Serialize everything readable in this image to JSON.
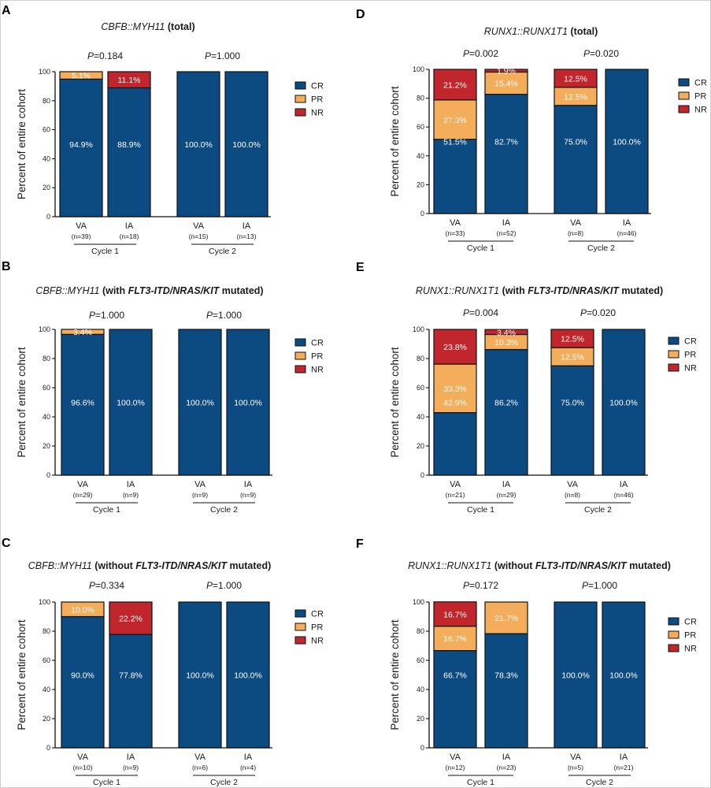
{
  "colors": {
    "CR": "#0c4a82",
    "PR": "#f3ad5b",
    "NR": "#c1262d"
  },
  "chart_data": [
    {
      "type": "bar",
      "stacked": true,
      "panel": "A",
      "title_parts": [
        {
          "text": "CBFB::MYH11",
          "style": "it"
        },
        {
          "text": " (total)",
          "style": "bd"
        }
      ],
      "ylabel": "Percent of entire cohort",
      "ylim": [
        0,
        100
      ],
      "yticks": [
        "0",
        "20",
        "40",
        "60",
        "80",
        "100"
      ],
      "legend": [
        "CR",
        "PR",
        "NR"
      ],
      "groups": [
        {
          "cycle": "Cycle 1",
          "pvalue": "0.184",
          "bars": [
            {
              "arm": "VA",
              "n": "(n=39)",
              "segments": [
                {
                  "type": "CR",
                  "value": 94.9,
                  "label": "94.9%"
                },
                {
                  "type": "PR",
                  "value": 5.1,
                  "label": "5.1%"
                }
              ]
            },
            {
              "arm": "IA",
              "n": "(n=18)",
              "segments": [
                {
                  "type": "CR",
                  "value": 88.9,
                  "label": "88.9%"
                },
                {
                  "type": "NR",
                  "value": 11.1,
                  "label": "11.1%"
                }
              ]
            }
          ]
        },
        {
          "cycle": "Cycle 2",
          "pvalue": "1.000",
          "bars": [
            {
              "arm": "VA",
              "n": "(n=15)",
              "segments": [
                {
                  "type": "CR",
                  "value": 100.0,
                  "label": "100.0%"
                }
              ]
            },
            {
              "arm": "IA",
              "n": "(n=13)",
              "segments": [
                {
                  "type": "CR",
                  "value": 100.0,
                  "label": "100.0%"
                }
              ]
            }
          ]
        }
      ]
    },
    {
      "type": "bar",
      "stacked": true,
      "panel": "B",
      "title_parts": [
        {
          "text": "CBFB::MYH11",
          "style": "it"
        },
        {
          "text": " (with ",
          "style": "bd"
        },
        {
          "text": "FLT3-ITD/NRAS/KIT",
          "style": "bdit"
        },
        {
          "text": " mutated)",
          "style": "bd"
        }
      ],
      "ylabel": "Percent of entire cohort",
      "ylim": [
        0,
        100
      ],
      "yticks": [
        "0",
        "20",
        "40",
        "60",
        "80",
        "100"
      ],
      "legend": [
        "CR",
        "PR",
        "NR"
      ],
      "groups": [
        {
          "cycle": "Cycle 1",
          "pvalue": "1.000",
          "bars": [
            {
              "arm": "VA",
              "n": "(n=29)",
              "segments": [
                {
                  "type": "CR",
                  "value": 96.6,
                  "label": "96.6%"
                },
                {
                  "type": "PR",
                  "value": 3.4,
                  "label": "3.4%"
                }
              ]
            },
            {
              "arm": "IA",
              "n": "(n=9)",
              "segments": [
                {
                  "type": "CR",
                  "value": 100.0,
                  "label": "100.0%"
                }
              ]
            }
          ]
        },
        {
          "cycle": "Cycle 2",
          "pvalue": "1.000",
          "bars": [
            {
              "arm": "VA",
              "n": "(n=9)",
              "segments": [
                {
                  "type": "CR",
                  "value": 100.0,
                  "label": "100.0%"
                }
              ]
            },
            {
              "arm": "IA",
              "n": "(n=9)",
              "segments": [
                {
                  "type": "CR",
                  "value": 100.0,
                  "label": "100.0%"
                }
              ]
            }
          ]
        }
      ]
    },
    {
      "type": "bar",
      "stacked": true,
      "panel": "C",
      "title_parts": [
        {
          "text": "CBFB::MYH11",
          "style": "it"
        },
        {
          "text": " (without ",
          "style": "bd"
        },
        {
          "text": "FLT3-ITD/NRAS/KIT",
          "style": "bdit"
        },
        {
          "text": " mutated)",
          "style": "bd"
        }
      ],
      "ylabel": "Percent of entire cohort",
      "ylim": [
        0,
        100
      ],
      "yticks": [
        "0",
        "20",
        "40",
        "60",
        "80",
        "100"
      ],
      "legend": [
        "CR",
        "PR",
        "NR"
      ],
      "groups": [
        {
          "cycle": "Cycle 1",
          "pvalue": "0.334",
          "bars": [
            {
              "arm": "VA",
              "n": "(n=10)",
              "segments": [
                {
                  "type": "CR",
                  "value": 90.0,
                  "label": "90.0%"
                },
                {
                  "type": "PR",
                  "value": 10.0,
                  "label": "10.0%"
                }
              ]
            },
            {
              "arm": "IA",
              "n": "(n=9)",
              "segments": [
                {
                  "type": "CR",
                  "value": 77.8,
                  "label": "77.8%"
                },
                {
                  "type": "NR",
                  "value": 22.2,
                  "label": "22.2%"
                }
              ]
            }
          ]
        },
        {
          "cycle": "Cycle 2",
          "pvalue": "1.000",
          "bars": [
            {
              "arm": "VA",
              "n": "(n=6)",
              "segments": [
                {
                  "type": "CR",
                  "value": 100.0,
                  "label": "100.0%"
                }
              ]
            },
            {
              "arm": "IA",
              "n": "(n=4)",
              "segments": [
                {
                  "type": "CR",
                  "value": 100.0,
                  "label": "100.0%"
                }
              ]
            }
          ]
        }
      ]
    },
    {
      "type": "bar",
      "stacked": true,
      "panel": "D",
      "title_parts": [
        {
          "text": "RUNX1::RUNX1T1",
          "style": "it"
        },
        {
          "text": " (total)",
          "style": "bd"
        }
      ],
      "ylabel": "Percent of entire cohort",
      "ylim": [
        0,
        100
      ],
      "yticks": [
        "0",
        "20",
        "40",
        "60",
        "80",
        "100"
      ],
      "legend": [
        "CR",
        "PR",
        "NR"
      ],
      "groups": [
        {
          "cycle": "Cycle 1",
          "pvalue": "0.002",
          "bars": [
            {
              "arm": "VA",
              "n": "(n=33)",
              "segments": [
                {
                  "type": "CR",
                  "value": 51.5,
                  "label": "51.5%"
                },
                {
                  "type": "PR",
                  "value": 27.3,
                  "label": "27.3%"
                },
                {
                  "type": "NR",
                  "value": 21.2,
                  "label": "21.2%"
                }
              ]
            },
            {
              "arm": "IA",
              "n": "(n=52)",
              "segments": [
                {
                  "type": "CR",
                  "value": 82.7,
                  "label": "82.7%"
                },
                {
                  "type": "PR",
                  "value": 15.4,
                  "label": "15.4%"
                },
                {
                  "type": "NR",
                  "value": 1.9,
                  "label": "1.9%"
                }
              ]
            }
          ]
        },
        {
          "cycle": "Cycle 2",
          "pvalue": "0.020",
          "bars": [
            {
              "arm": "VA",
              "n": "(n=8)",
              "segments": [
                {
                  "type": "CR",
                  "value": 75.0,
                  "label": "75.0%"
                },
                {
                  "type": "PR",
                  "value": 12.5,
                  "label": "12.5%"
                },
                {
                  "type": "NR",
                  "value": 12.5,
                  "label": "12.5%"
                }
              ]
            },
            {
              "arm": "IA",
              "n": "(n=46)",
              "segments": [
                {
                  "type": "CR",
                  "value": 100.0,
                  "label": "100.0%"
                }
              ]
            }
          ]
        }
      ]
    },
    {
      "type": "bar",
      "stacked": true,
      "panel": "E",
      "title_parts": [
        {
          "text": "RUNX1::RUNX1T1",
          "style": "it"
        },
        {
          "text": " (with ",
          "style": "bd"
        },
        {
          "text": "FLT3-ITD/NRAS/KIT",
          "style": "bdit"
        },
        {
          "text": " mutated)",
          "style": "bd"
        }
      ],
      "ylabel": "Percent of entire cohort",
      "ylim": [
        0,
        100
      ],
      "yticks": [
        "0",
        "20",
        "40",
        "60",
        "80",
        "100"
      ],
      "legend": [
        "CR",
        "PR",
        "NR"
      ],
      "groups": [
        {
          "cycle": "Cycle 1",
          "pvalue": "0.004",
          "bars": [
            {
              "arm": "VA",
              "n": "(n=21)",
              "segments": [
                {
                  "type": "CR",
                  "value": 42.9,
                  "label": "42.9%"
                },
                {
                  "type": "PR",
                  "value": 33.3,
                  "label": "33.3%"
                },
                {
                  "type": "NR",
                  "value": 23.8,
                  "label": "23.8%"
                }
              ]
            },
            {
              "arm": "IA",
              "n": "(n=29)",
              "segments": [
                {
                  "type": "CR",
                  "value": 86.2,
                  "label": "86.2%"
                },
                {
                  "type": "PR",
                  "value": 10.3,
                  "label": "10.3%"
                },
                {
                  "type": "NR",
                  "value": 3.4,
                  "label": "3.4%"
                }
              ]
            }
          ]
        },
        {
          "cycle": "Cycle 2",
          "pvalue": "0.020",
          "bars": [
            {
              "arm": "VA",
              "n": "(n=8)",
              "segments": [
                {
                  "type": "CR",
                  "value": 75.0,
                  "label": "75.0%"
                },
                {
                  "type": "PR",
                  "value": 12.5,
                  "label": "12.5%"
                },
                {
                  "type": "NR",
                  "value": 12.5,
                  "label": "12.5%"
                }
              ]
            },
            {
              "arm": "IA",
              "n": "(n=46)",
              "segments": [
                {
                  "type": "CR",
                  "value": 100.0,
                  "label": "100.0%"
                }
              ]
            }
          ]
        }
      ]
    },
    {
      "type": "bar",
      "stacked": true,
      "panel": "F",
      "title_parts": [
        {
          "text": "RUNX1::RUNX1T1",
          "style": "it"
        },
        {
          "text": " (without ",
          "style": "bd"
        },
        {
          "text": "FLT3-ITD/NRAS/KIT",
          "style": "bdit"
        },
        {
          "text": " mutated)",
          "style": "bd"
        }
      ],
      "ylabel": "Percent of entire cohort",
      "ylim": [
        0,
        100
      ],
      "yticks": [
        "0",
        "20",
        "40",
        "60",
        "80",
        "100"
      ],
      "legend": [
        "CR",
        "PR",
        "NR"
      ],
      "groups": [
        {
          "cycle": "Cycle 1",
          "pvalue": "0.172",
          "bars": [
            {
              "arm": "VA",
              "n": "(n=12)",
              "segments": [
                {
                  "type": "CR",
                  "value": 66.7,
                  "label": "66.7%"
                },
                {
                  "type": "PR",
                  "value": 16.7,
                  "label": "16.7%"
                },
                {
                  "type": "NR",
                  "value": 16.7,
                  "label": "16.7%"
                }
              ]
            },
            {
              "arm": "IA",
              "n": "(n=23)",
              "segments": [
                {
                  "type": "CR",
                  "value": 78.3,
                  "label": "78.3%"
                },
                {
                  "type": "PR",
                  "value": 21.7,
                  "label": "21.7%"
                }
              ]
            }
          ]
        },
        {
          "cycle": "Cycle 2",
          "pvalue": "1.000",
          "bars": [
            {
              "arm": "VA",
              "n": "(n=5)",
              "segments": [
                {
                  "type": "CR",
                  "value": 100.0,
                  "label": "100.0%"
                }
              ]
            },
            {
              "arm": "IA",
              "n": "(n=21)",
              "segments": [
                {
                  "type": "CR",
                  "value": 100.0,
                  "label": "100.0%"
                }
              ]
            }
          ]
        }
      ]
    }
  ]
}
